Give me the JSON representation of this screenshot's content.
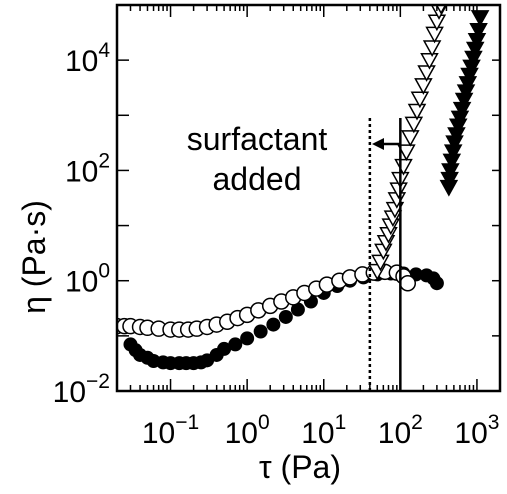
{
  "chart_data": {
    "type": "scatter",
    "title": "",
    "xlabel": "τ (Pa)",
    "ylabel": "η (Pa·s)",
    "xscale": "log",
    "yscale": "log",
    "xlim": [
      0.02,
      2000
    ],
    "ylim": [
      0.01,
      100000
    ],
    "grid": false,
    "x_tick_labels": [
      {
        "value": 0.1,
        "base": "10",
        "exp": "−1"
      },
      {
        "value": 1,
        "base": "10",
        "exp": "0"
      },
      {
        "value": 10,
        "base": "10",
        "exp": "1"
      },
      {
        "value": 100,
        "base": "10",
        "exp": "2"
      },
      {
        "value": 1000,
        "base": "10",
        "exp": "3"
      }
    ],
    "y_tick_labels": [
      {
        "value": 0.01,
        "base": "10",
        "exp": "−2"
      },
      {
        "value": 1,
        "base": "10",
        "exp": "0"
      },
      {
        "value": 100,
        "base": "10",
        "exp": "2"
      },
      {
        "value": 10000,
        "base": "10",
        "exp": "4"
      }
    ],
    "annotation": {
      "lines": [
        "surfactant",
        "added"
      ],
      "arrow": "left"
    },
    "vertical_lines": [
      {
        "x": 40,
        "style": "dotted"
      },
      {
        "x": 100,
        "style": "solid"
      }
    ],
    "series": [
      {
        "marker": "filled-circle",
        "color": "#000000",
        "x": [
          0.03,
          0.035,
          0.04,
          0.05,
          0.06,
          0.08,
          0.1,
          0.13,
          0.16,
          0.2,
          0.25,
          0.3,
          0.4,
          0.5,
          0.7,
          1.0,
          1.5,
          2.2,
          3.2,
          4.6,
          6.8,
          10,
          15,
          22,
          33,
          50,
          75,
          110,
          160,
          220,
          270,
          300
        ],
        "y": [
          0.07,
          0.055,
          0.045,
          0.04,
          0.035,
          0.033,
          0.032,
          0.032,
          0.032,
          0.032,
          0.033,
          0.036,
          0.045,
          0.058,
          0.07,
          0.09,
          0.12,
          0.16,
          0.22,
          0.3,
          0.42,
          0.6,
          0.8,
          1.0,
          1.15,
          1.3,
          1.35,
          1.35,
          1.3,
          1.25,
          1.1,
          0.9
        ]
      },
      {
        "marker": "open-circle",
        "color": "#000000",
        "x": [
          0.02,
          0.025,
          0.03,
          0.04,
          0.05,
          0.07,
          0.1,
          0.13,
          0.17,
          0.22,
          0.3,
          0.4,
          0.55,
          0.75,
          1.0,
          1.4,
          2.0,
          2.8,
          4.0,
          5.6,
          8.0,
          11,
          16,
          22,
          32,
          45,
          63,
          90,
          110,
          125
        ],
        "y": [
          0.15,
          0.15,
          0.15,
          0.145,
          0.14,
          0.135,
          0.13,
          0.13,
          0.13,
          0.135,
          0.145,
          0.16,
          0.18,
          0.21,
          0.24,
          0.29,
          0.35,
          0.42,
          0.5,
          0.6,
          0.72,
          0.85,
          1.0,
          1.15,
          1.3,
          1.4,
          1.45,
          1.4,
          1.2,
          0.9
        ]
      },
      {
        "marker": "open-triangle-down",
        "color": "#000000",
        "x": [
          50,
          55,
          60,
          65,
          70,
          75,
          80,
          85,
          90,
          95,
          100,
          110,
          120,
          135,
          150,
          165,
          180,
          200,
          220,
          240,
          260,
          280,
          300,
          320,
          340
        ],
        "y": [
          1.5,
          2.2,
          3.5,
          5,
          7,
          10,
          14,
          20,
          30,
          45,
          70,
          120,
          220,
          400,
          700,
          1200,
          2000,
          3500,
          6000,
          10000,
          17000,
          30000,
          50000,
          80000,
          100000
        ]
      },
      {
        "marker": "filled-triangle-down",
        "color": "#000000",
        "x": [
          430,
          440,
          450,
          470,
          490,
          510,
          540,
          570,
          600,
          640,
          680,
          720,
          760,
          800,
          850,
          900,
          950,
          1000,
          1050,
          1100
        ],
        "y": [
          50,
          70,
          100,
          150,
          220,
          320,
          450,
          650,
          900,
          1300,
          1900,
          2700,
          3800,
          5400,
          7600,
          11000,
          16000,
          23000,
          35000,
          60000
        ]
      }
    ]
  }
}
